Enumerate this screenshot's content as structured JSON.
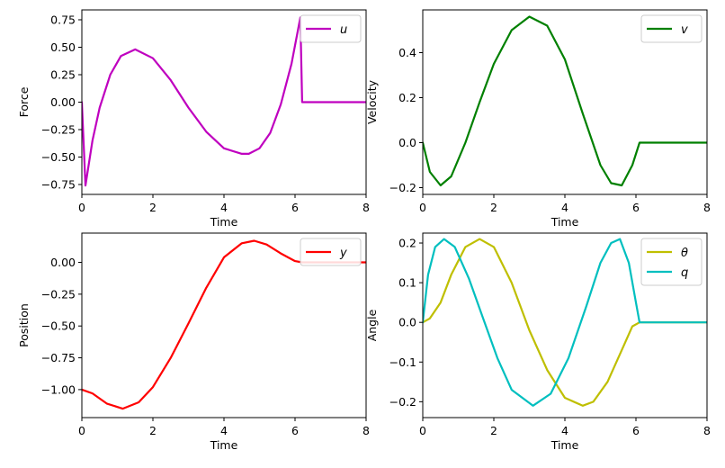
{
  "chart_data": [
    {
      "type": "line",
      "xlabel": "Time",
      "ylabel": "Force",
      "xlim": [
        0,
        8
      ],
      "ylim": [
        -0.84,
        0.84
      ],
      "xticks": [
        0,
        2,
        4,
        6,
        8
      ],
      "xtick_labels": [
        "0",
        "2",
        "4",
        "6",
        "8"
      ],
      "yticks": [
        -0.75,
        -0.5,
        -0.25,
        0.0,
        0.25,
        0.5,
        0.75
      ],
      "ytick_labels": [
        "−0.75",
        "−0.50",
        "−0.25",
        "0.00",
        "0.25",
        "0.50",
        "0.75"
      ],
      "legend_position": "top-right",
      "grid": false,
      "series": [
        {
          "name": "u",
          "color": "#bf00bf",
          "x": [
            0,
            0.1,
            0.3,
            0.5,
            0.8,
            1.1,
            1.5,
            2.0,
            2.5,
            3.0,
            3.5,
            4.0,
            4.5,
            4.7,
            5.0,
            5.3,
            5.6,
            5.9,
            6.15,
            6.2,
            6.5,
            7.0,
            8.0
          ],
          "y": [
            0.0,
            -0.76,
            -0.35,
            -0.05,
            0.25,
            0.42,
            0.48,
            0.4,
            0.2,
            -0.05,
            -0.27,
            -0.42,
            -0.47,
            -0.47,
            -0.42,
            -0.28,
            -0.02,
            0.35,
            0.77,
            0.0,
            0.0,
            0.0,
            0.0
          ]
        }
      ]
    },
    {
      "type": "line",
      "xlabel": "Time",
      "ylabel": "Velocity",
      "xlim": [
        0,
        8
      ],
      "ylim": [
        -0.23,
        0.59
      ],
      "xticks": [
        0,
        2,
        4,
        6,
        8
      ],
      "xtick_labels": [
        "0",
        "2",
        "4",
        "6",
        "8"
      ],
      "yticks": [
        -0.2,
        0.0,
        0.2,
        0.4
      ],
      "ytick_labels": [
        "−0.2",
        "0.0",
        "0.2",
        "0.4"
      ],
      "legend_position": "top-right",
      "grid": false,
      "series": [
        {
          "name": "v",
          "color": "#008000",
          "x": [
            0,
            0.2,
            0.5,
            0.8,
            1.2,
            1.6,
            2.0,
            2.5,
            3.0,
            3.5,
            4.0,
            4.5,
            5.0,
            5.3,
            5.6,
            5.9,
            6.1,
            6.5,
            7.0,
            8.0
          ],
          "y": [
            0.0,
            -0.13,
            -0.19,
            -0.15,
            0.0,
            0.18,
            0.35,
            0.5,
            0.56,
            0.52,
            0.37,
            0.13,
            -0.1,
            -0.18,
            -0.19,
            -0.1,
            0.0,
            0.0,
            0.0,
            0.0
          ]
        }
      ]
    },
    {
      "type": "line",
      "xlabel": "Time",
      "ylabel": "Position",
      "xlim": [
        0,
        8
      ],
      "ylim": [
        -1.22,
        0.23
      ],
      "xticks": [
        0,
        2,
        4,
        6,
        8
      ],
      "xtick_labels": [
        "0",
        "2",
        "4",
        "6",
        "8"
      ],
      "yticks": [
        -1.0,
        -0.75,
        -0.5,
        -0.25,
        0.0
      ],
      "ytick_labels": [
        "−1.00",
        "−0.75",
        "−0.50",
        "−0.25",
        "0.00"
      ],
      "legend_position": "top-right",
      "grid": false,
      "series": [
        {
          "name": "y",
          "color": "#ff0000",
          "x": [
            0,
            0.3,
            0.7,
            1.15,
            1.6,
            2.0,
            2.5,
            3.0,
            3.5,
            4.0,
            4.5,
            4.85,
            5.2,
            5.6,
            6.0,
            6.2,
            7.0,
            8.0
          ],
          "y": [
            -1.0,
            -1.03,
            -1.11,
            -1.15,
            -1.1,
            -0.98,
            -0.75,
            -0.48,
            -0.2,
            0.04,
            0.15,
            0.17,
            0.14,
            0.07,
            0.01,
            0.0,
            0.0,
            0.0
          ]
        }
      ]
    },
    {
      "type": "line",
      "xlabel": "Time",
      "ylabel": "Angle",
      "xlim": [
        0,
        8
      ],
      "ylim": [
        -0.24,
        0.225
      ],
      "xticks": [
        0,
        2,
        4,
        6,
        8
      ],
      "xtick_labels": [
        "0",
        "2",
        "4",
        "6",
        "8"
      ],
      "yticks": [
        -0.2,
        -0.1,
        0.0,
        0.1,
        0.2
      ],
      "ytick_labels": [
        "−0.2",
        "−0.1",
        "0.0",
        "0.1",
        "0.2"
      ],
      "legend_position": "top-right",
      "grid": false,
      "series": [
        {
          "name": "θ",
          "color": "#bfbf00",
          "x": [
            0,
            0.2,
            0.5,
            0.8,
            1.2,
            1.6,
            2.0,
            2.5,
            3.0,
            3.5,
            4.0,
            4.5,
            4.8,
            5.2,
            5.6,
            5.9,
            6.1,
            6.5,
            7.0,
            8.0
          ],
          "y": [
            0.0,
            0.01,
            0.05,
            0.12,
            0.19,
            0.21,
            0.19,
            0.1,
            -0.02,
            -0.12,
            -0.19,
            -0.21,
            -0.2,
            -0.15,
            -0.07,
            -0.01,
            0.0,
            0.0,
            0.0,
            0.0
          ]
        },
        {
          "name": "q",
          "color": "#00bfbf",
          "x": [
            0,
            0.15,
            0.35,
            0.6,
            0.9,
            1.3,
            1.7,
            2.1,
            2.5,
            3.1,
            3.6,
            4.1,
            4.6,
            5.0,
            5.3,
            5.55,
            5.8,
            6.0,
            6.1,
            6.5,
            7.0,
            8.0
          ],
          "y": [
            0.0,
            0.12,
            0.19,
            0.21,
            0.19,
            0.11,
            0.01,
            -0.09,
            -0.17,
            -0.21,
            -0.18,
            -0.09,
            0.04,
            0.15,
            0.2,
            0.21,
            0.15,
            0.05,
            0.0,
            0.0,
            0.0,
            0.0
          ]
        }
      ]
    }
  ]
}
